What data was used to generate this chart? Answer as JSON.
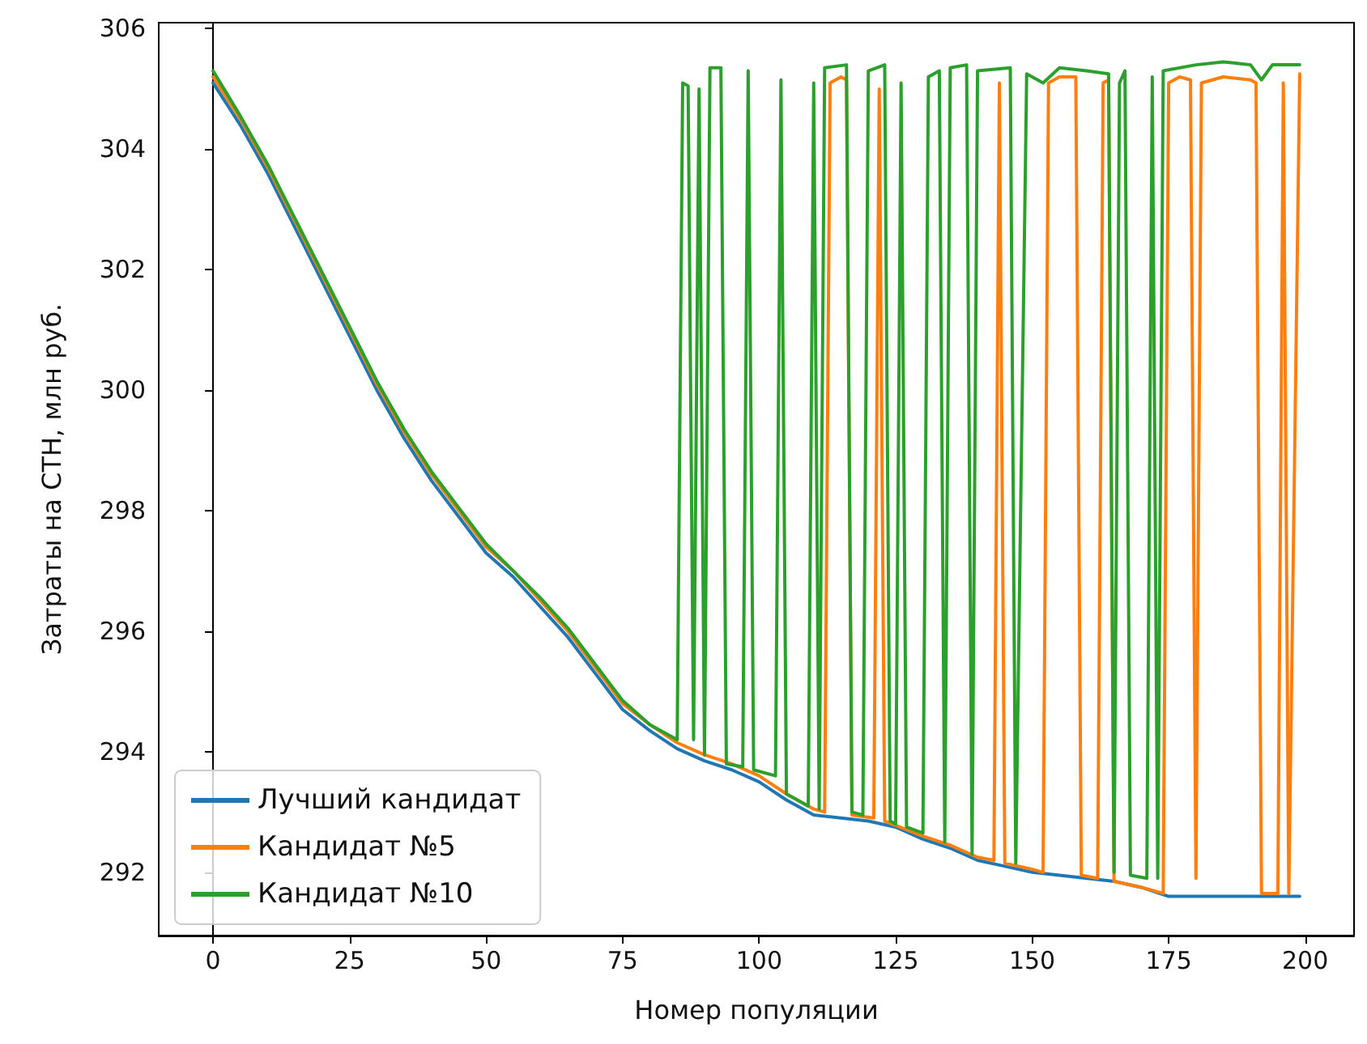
{
  "chart_data": {
    "type": "line",
    "xlabel": "Номер популяции",
    "ylabel": "Затраты на СТН, млн руб.",
    "xlim": [
      -9.95,
      208.95
    ],
    "xticks": [
      0,
      25,
      50,
      75,
      100,
      125,
      150,
      175,
      200
    ],
    "ylim": [
      290.95,
      306.1
    ],
    "yticks": [
      292,
      294,
      296,
      298,
      300,
      302,
      304,
      306
    ],
    "legend": "bottom left",
    "marker": "none",
    "line_style": "solid",
    "series": [
      {
        "name": "Лучший кандидат",
        "color": "#1f77b4",
        "x": [
          0,
          5,
          10,
          15,
          20,
          25,
          30,
          35,
          40,
          45,
          50,
          55,
          60,
          65,
          70,
          75,
          80,
          85,
          90,
          95,
          100,
          105,
          110,
          115,
          120,
          125,
          130,
          135,
          140,
          145,
          150,
          155,
          160,
          165,
          170,
          175,
          180,
          185,
          190,
          195,
          199
        ],
        "values": [
          305.1,
          304.4,
          303.6,
          302.7,
          301.8,
          300.9,
          300.0,
          299.2,
          298.5,
          297.9,
          297.3,
          296.9,
          296.4,
          295.9,
          295.3,
          294.7,
          294.35,
          294.05,
          293.85,
          293.7,
          293.5,
          293.2,
          292.95,
          292.9,
          292.85,
          292.75,
          292.55,
          292.4,
          292.2,
          292.1,
          292.0,
          291.95,
          291.9,
          291.85,
          291.75,
          291.6,
          291.6,
          291.6,
          291.6,
          291.6,
          291.6
        ]
      },
      {
        "name": "Кандидат №5",
        "color": "#ff7f0e",
        "x": [
          0,
          5,
          10,
          15,
          20,
          25,
          30,
          35,
          40,
          45,
          50,
          55,
          60,
          65,
          70,
          75,
          80,
          85,
          90,
          95,
          100,
          105,
          110,
          112,
          113,
          115,
          116,
          117,
          121,
          122,
          123,
          130,
          135,
          140,
          143,
          144,
          145,
          150,
          152,
          153,
          155,
          158,
          159,
          162,
          163,
          164,
          165,
          170,
          174,
          175,
          177,
          179,
          180,
          181,
          185,
          190,
          191,
          192,
          195,
          196,
          197,
          199
        ],
        "values": [
          305.2,
          304.5,
          303.7,
          302.8,
          301.9,
          301.0,
          300.1,
          299.3,
          298.6,
          298.0,
          297.4,
          297.0,
          296.5,
          296.0,
          295.4,
          294.8,
          294.45,
          294.15,
          293.95,
          293.8,
          293.6,
          293.3,
          293.05,
          293.0,
          305.1,
          305.2,
          305.15,
          292.95,
          292.9,
          305.0,
          292.85,
          292.6,
          292.45,
          292.25,
          292.2,
          305.1,
          292.15,
          292.05,
          292.0,
          305.1,
          305.2,
          305.2,
          291.95,
          291.9,
          305.1,
          305.15,
          291.85,
          291.75,
          291.65,
          305.1,
          305.2,
          305.15,
          291.9,
          305.1,
          305.2,
          305.15,
          305.1,
          291.65,
          291.65,
          305.1,
          291.65,
          305.25
        ]
      },
      {
        "name": "Кандидат №10",
        "color": "#2ca02c",
        "x": [
          0,
          5,
          10,
          15,
          20,
          25,
          30,
          35,
          40,
          45,
          50,
          55,
          60,
          65,
          70,
          75,
          80,
          85,
          86,
          87,
          88,
          89,
          90,
          91,
          93,
          94,
          97,
          98,
          99,
          103,
          104,
          105,
          109,
          110,
          111,
          112,
          116,
          117,
          119,
          120,
          123,
          124,
          125,
          126,
          127,
          130,
          131,
          133,
          134,
          135,
          138,
          139,
          140,
          146,
          147,
          149,
          152,
          155,
          160,
          164,
          165,
          166,
          167,
          168,
          171,
          172,
          173,
          174,
          180,
          185,
          190,
          192,
          194,
          199
        ],
        "values": [
          305.3,
          304.55,
          303.75,
          302.85,
          301.95,
          301.05,
          300.15,
          299.35,
          298.65,
          298.05,
          297.45,
          297.0,
          296.55,
          296.05,
          295.45,
          294.85,
          294.45,
          294.2,
          305.1,
          305.05,
          294.2,
          305.0,
          293.95,
          305.35,
          305.35,
          293.8,
          293.75,
          305.3,
          293.7,
          293.6,
          305.15,
          293.3,
          293.1,
          305.1,
          293.05,
          305.35,
          305.4,
          293.0,
          292.95,
          305.3,
          305.4,
          292.85,
          292.8,
          305.1,
          292.75,
          292.65,
          305.2,
          305.3,
          292.5,
          305.35,
          305.4,
          292.3,
          305.3,
          305.35,
          292.15,
          305.25,
          305.1,
          305.35,
          305.3,
          305.25,
          292.0,
          305.1,
          305.3,
          291.95,
          291.9,
          305.2,
          291.9,
          305.3,
          305.4,
          305.45,
          305.4,
          305.15,
          305.4,
          305.4
        ]
      }
    ]
  }
}
